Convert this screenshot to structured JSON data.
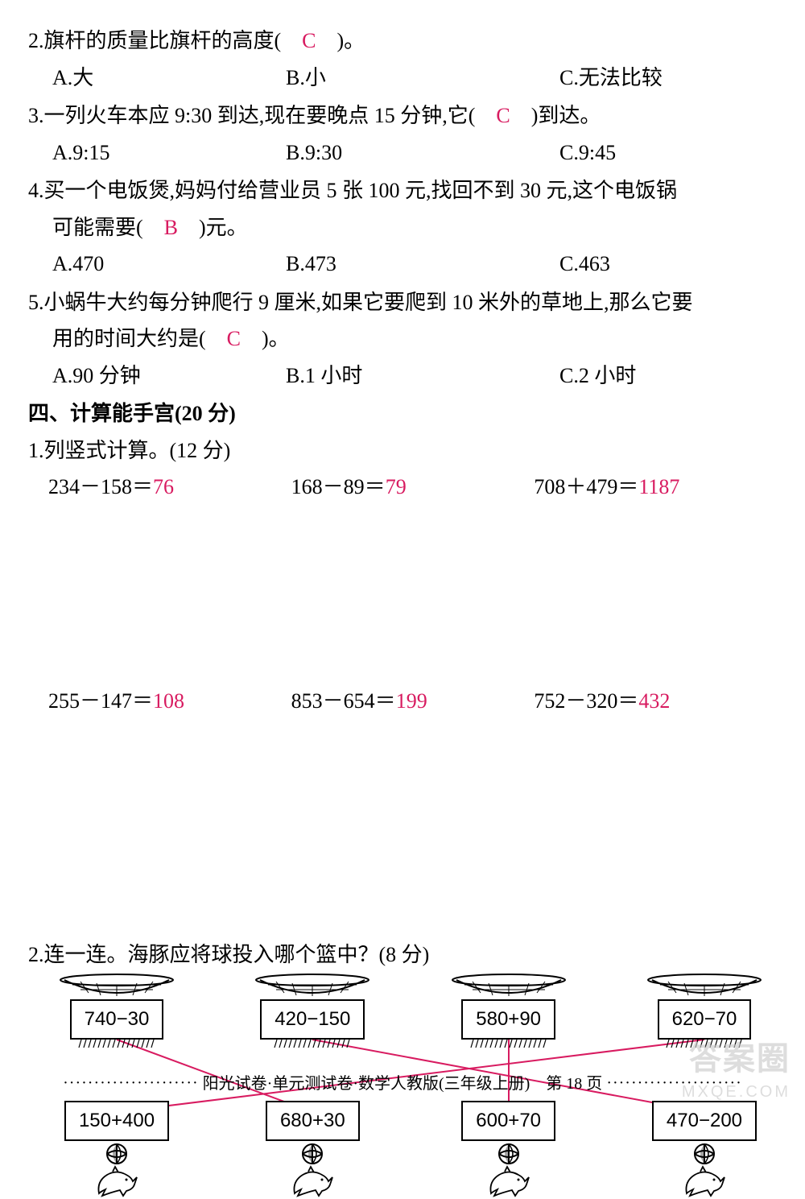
{
  "colors": {
    "answer": "#d81b60",
    "text": "#000000",
    "line": "#d81b60"
  },
  "q2": {
    "text": "2.旗杆的质量比旗杆的高度(　",
    "ans": "C",
    "text2": "　)。",
    "a": "A.大",
    "b": "B.小",
    "c": "C.无法比较"
  },
  "q3": {
    "text": "3.一列火车本应 9:30 到达,现在要晚点 15 分钟,它(　",
    "ans": "C",
    "text2": "　)到达。",
    "a": "A.9:15",
    "b": "B.9:30",
    "c": "C.9:45"
  },
  "q4": {
    "line1": "4.买一个电饭煲,妈妈付给营业员 5 张 100 元,找回不到 30 元,这个电饭锅",
    "line2a": "可能需要(　",
    "ans": "B",
    "line2b": "　)元。",
    "a": "A.470",
    "b": "B.473",
    "c": "C.463"
  },
  "q5": {
    "line1": "5.小蜗牛大约每分钟爬行 9 厘米,如果它要爬到 10 米外的草地上,那么它要",
    "line2a": "用的时间大约是(　",
    "ans": "C",
    "line2b": "　)。",
    "a": "A.90 分钟",
    "b": "B.1 小时",
    "c": "C.2 小时"
  },
  "section4": "四、计算能手宫(20 分)",
  "sub1": "1.列竖式计算。(12 分)",
  "calc": {
    "r1": [
      {
        "expr": "234－158＝",
        "ans": "76"
      },
      {
        "expr": "168－89＝",
        "ans": "79"
      },
      {
        "expr": "708＋479＝",
        "ans": "1187"
      }
    ],
    "r2": [
      {
        "expr": "255－147＝",
        "ans": "108"
      },
      {
        "expr": "853－654＝",
        "ans": "199"
      },
      {
        "expr": "752－320＝",
        "ans": "432"
      }
    ]
  },
  "sub2": "2.连一连。海豚应将球投入哪个篮中？(8 分)",
  "baskets": [
    "740−30",
    "420−150",
    "580+90",
    "620−70"
  ],
  "dolphins": [
    "150+400",
    "680+30",
    "600+70",
    "470−200"
  ],
  "connections": [
    {
      "from": 0,
      "to": 1
    },
    {
      "from": 1,
      "to": 3
    },
    {
      "from": 2,
      "to": 2
    },
    {
      "from": 3,
      "to": 0
    }
  ],
  "footer": "阳光试卷·单元测试卷·数学人教版(三年级上册)　第 18 页",
  "watermark": "答案圈",
  "watermark_sub": "MXQE.COM"
}
